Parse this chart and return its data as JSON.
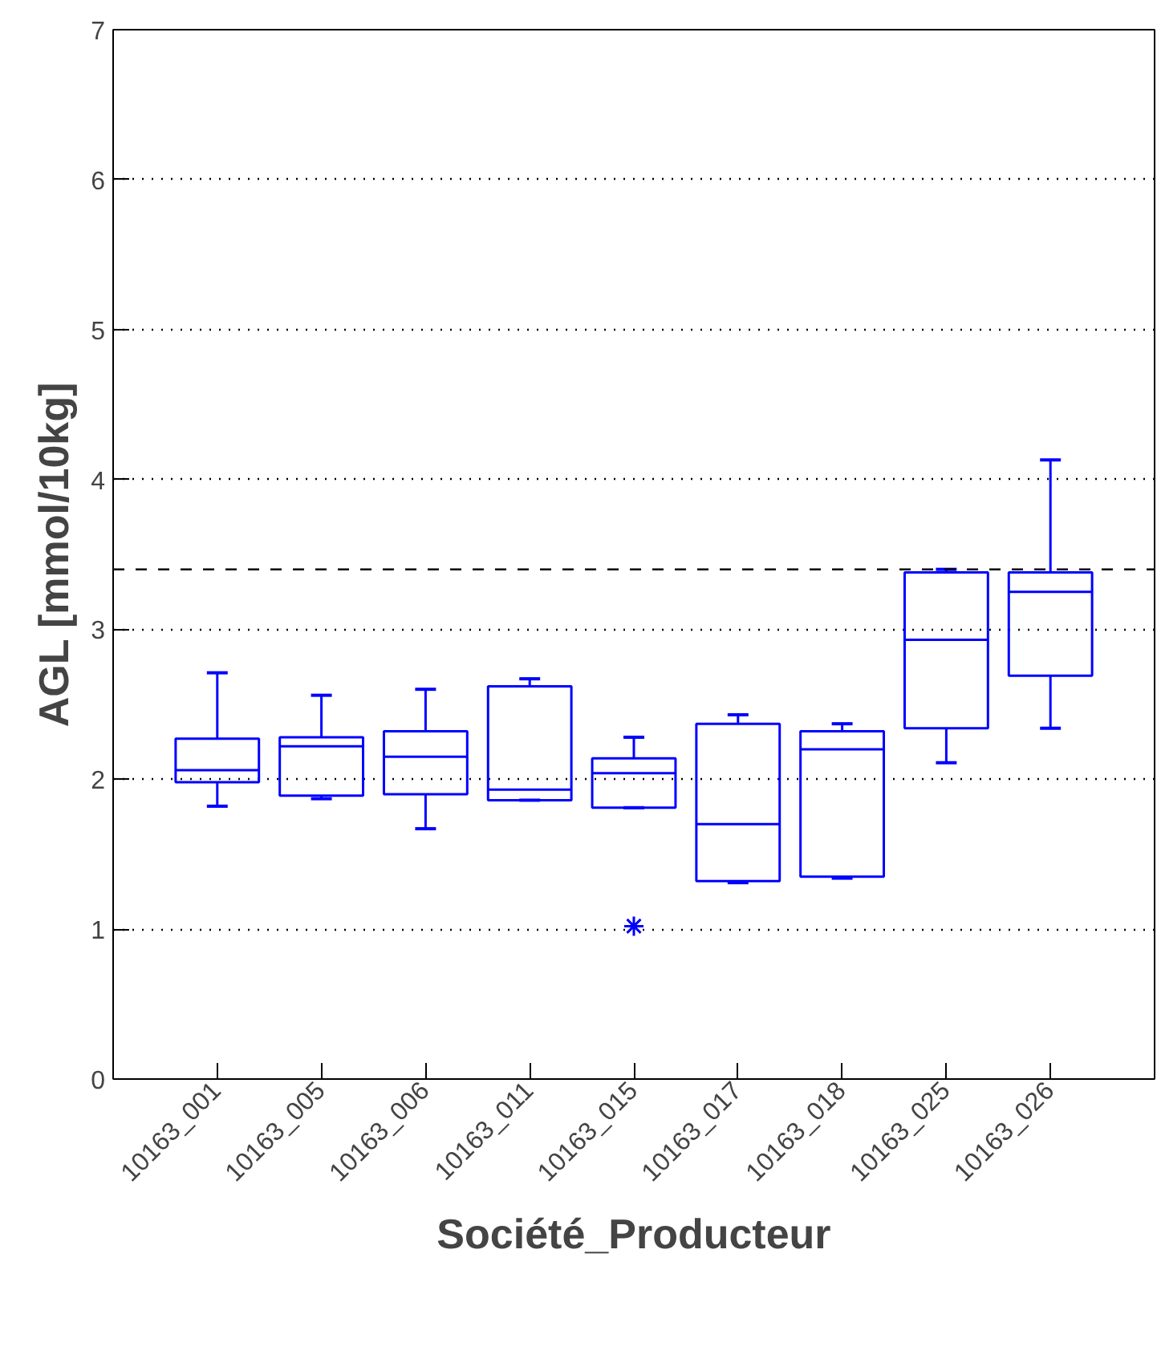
{
  "chart_data": {
    "type": "box",
    "xlabel": "Société_Producteur",
    "ylabel": "AGL [mmol/10kg]",
    "categories": [
      "10163_001",
      "10163_005",
      "10163_006",
      "10163_011",
      "10163_015",
      "10163_017",
      "10163_018",
      "10163_025",
      "10163_026"
    ],
    "series": [
      {
        "color": "#0000ff",
        "boxes": [
          {
            "low": 1.82,
            "q1": 1.98,
            "median": 2.06,
            "q3": 2.27,
            "high": 2.71
          },
          {
            "low": 1.87,
            "q1": 1.89,
            "median": 2.22,
            "q3": 2.28,
            "high": 2.56
          },
          {
            "low": 1.67,
            "q1": 1.9,
            "median": 2.15,
            "q3": 2.32,
            "high": 2.6
          },
          {
            "low": 1.86,
            "q1": 1.86,
            "median": 1.93,
            "q3": 2.62,
            "high": 2.67
          },
          {
            "low": 1.81,
            "q1": 1.81,
            "median": 2.04,
            "q3": 2.14,
            "high": 2.28,
            "outliers": [
              1.02
            ]
          },
          {
            "low": 1.31,
            "q1": 1.32,
            "median": 1.7,
            "q3": 2.37,
            "high": 2.43
          },
          {
            "low": 1.34,
            "q1": 1.35,
            "median": 2.2,
            "q3": 2.32,
            "high": 2.37
          },
          {
            "low": 2.11,
            "q1": 2.34,
            "median": 2.93,
            "q3": 3.38,
            "high": 3.4
          },
          {
            "low": 2.34,
            "q1": 2.69,
            "median": 3.25,
            "q3": 3.38,
            "high": 4.13
          }
        ]
      }
    ],
    "ylim": [
      0,
      7
    ],
    "yticks": [
      0,
      1,
      2,
      3,
      4,
      5,
      6,
      7
    ],
    "grid": "y",
    "ref_lines": [
      {
        "axis": "y",
        "value": 3.4,
        "line_style": "dashed",
        "color": "#000000"
      }
    ]
  }
}
